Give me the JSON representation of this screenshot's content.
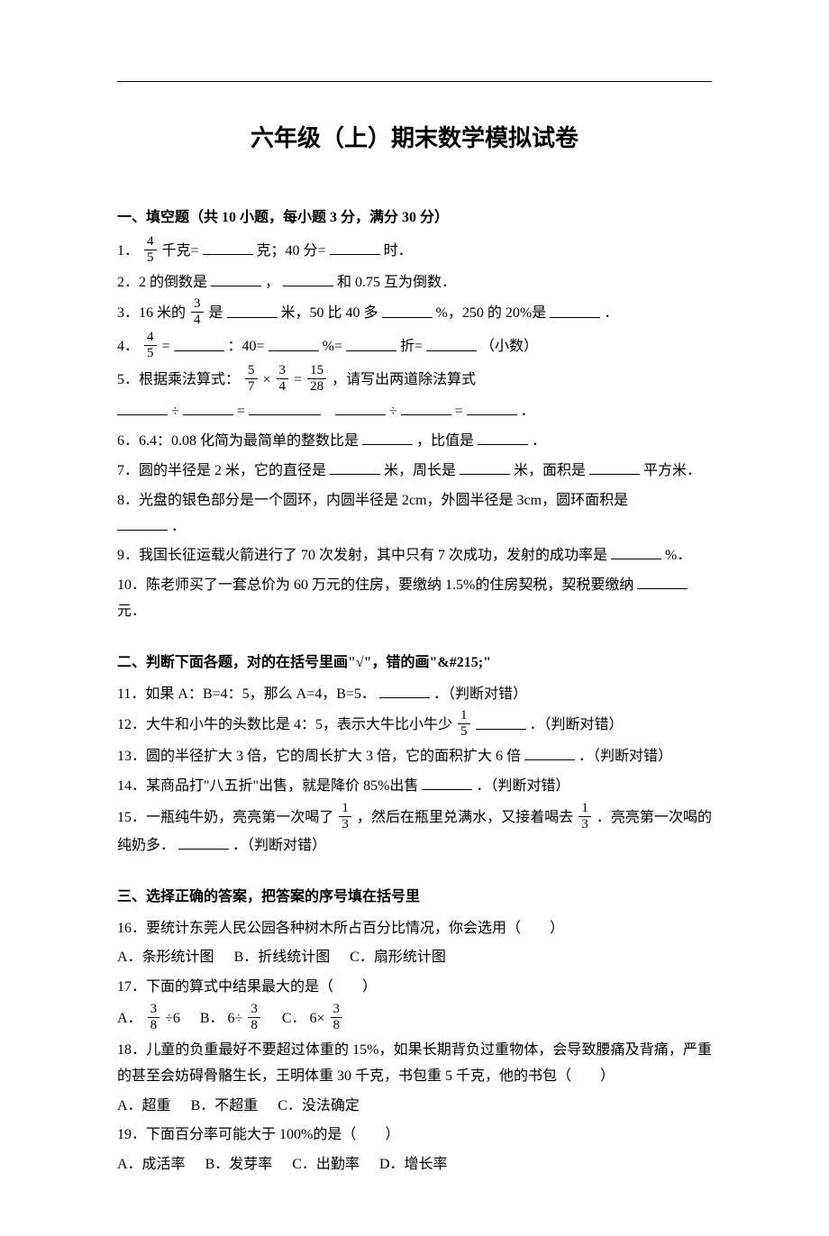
{
  "title": "六年级（上）期末数学模拟试卷",
  "section1_head": "一、填空题（共 10 小题，每小题 3 分，满分 30 分）",
  "q1_a": "1．",
  "q1_b": "千克=",
  "q1_c": "克；40 分=",
  "q1_d": "时．",
  "q1_frac_num": "4",
  "q1_frac_den": "5",
  "q2_a": "2．2 的倒数是",
  "q2_b": "，",
  "q2_c": "和 0.75 互为倒数．",
  "q3_a": "3．16 米的",
  "q3_b": "是",
  "q3_c": "米，50 比 40 多",
  "q3_d": "%，250 的 20%是",
  "q3_e": "．",
  "q3_frac_num": "3",
  "q3_frac_den": "4",
  "q4_a": "4．",
  "q4_b": "=",
  "q4_c": "：40=",
  "q4_d": "%=",
  "q4_e": "折=",
  "q4_f": "（小数）",
  "q4_frac_num": "4",
  "q4_frac_den": "5",
  "q5_a": "5．根据乘法算式：",
  "q5_b": "，请写出两道除法算式",
  "q5_f1n": "5",
  "q5_f1d": "7",
  "q5_mul": "×",
  "q5_f2n": "3",
  "q5_f2d": "4",
  "q5_eq1": "=",
  "q5_f3n": "15",
  "q5_f3d": "28",
  "q5_div": "÷",
  "q5_eq2": "=",
  "q5_div2": "÷",
  "q5_eq3": "=",
  "q5_dot": "．",
  "q6_a": "6．6.4：0.08 化简为最简单的整数比是",
  "q6_b": "，比值是",
  "q6_c": "．",
  "q7_a": "7．圆的半径是 2 米，它的直径是",
  "q7_b": "米，周长是",
  "q7_c": "米，面积是",
  "q7_d": "平方米．",
  "q8_a": "8．光盘的银色部分是一个圆环，内圆半径是 2cm，外圆半径是 3cm，圆环面积是",
  "q8_b": "．",
  "q9_a": "9．我国长征运载火箭进行了 70 次发射，其中只有 7 次成功，发射的成功率是",
  "q9_b": "%．",
  "q10_a": "10．陈老师买了一套总价为 60 万元的住房，要缴纳 1.5%的住房契税，契税要缴纳",
  "q10_b": "元．",
  "section2_head": "二、判断下面各题，对的在括号里画\"√\"，错的画\"&#215;\"",
  "q11_a": "11．如果 A：B=4：5，那么 A=4，B=5．",
  "q11_b": "．（判断对错）",
  "q12_a": "12．大牛和小牛的头数比是 4：5，表示大牛比小牛少",
  "q12_b": "．（判断对错）",
  "q12_frac_num": "1",
  "q12_frac_den": "5",
  "q13_a": "13．圆的半径扩大 3 倍，它的周长扩大 3 倍，它的面积扩大 6 倍",
  "q13_b": "．（判断对错）",
  "q14_a": "14．某商品打\"八五折\"出售，就是降价 85%出售",
  "q14_b": "．（判断对错）",
  "q15_a": "15．一瓶纯牛奶，亮亮第一次喝了",
  "q15_b": "，然后在瓶里兑满水，又接着喝去",
  "q15_c": "．亮亮第一次喝的纯奶多．",
  "q15_d": "．（判断对错）",
  "q15_frac_num": "1",
  "q15_frac_den": "3",
  "section3_head": "三、选择正确的答案，把答案的序号填在括号里",
  "q16_a": "16．要统计东莞人民公园各种树木所占百分比情况，你会选用（　　）",
  "q16_optA": "A．条形统计图",
  "q16_optB": "B．折线统计图",
  "q16_optC": "C．扇形统计图",
  "q17_a": "17．下面的算式中结果最大的是（　　）",
  "q17_A": "A．",
  "q17_B": "B．",
  "q17_C": "C．",
  "q17_f_num": "3",
  "q17_f_den": "8",
  "q17_div6": "÷6",
  "q17_6div": "6÷",
  "q17_6mul": "6×",
  "q18_a": "18．儿童的负重最好不要超过体重的 15%，如果长期背负过重物体，会导致腰痛及背痛，严重的甚至会妨碍骨骼生长，王明体重 30 千克，书包重 5 千克，他的书包（　　）",
  "q18_optA": "A．超重",
  "q18_optB": "B．不超重",
  "q18_optC": "C．没法确定",
  "q19_a": "19．下面百分率可能大于 100%的是（　　）",
  "q19_optA": "A．成活率",
  "q19_optB": "B．发芽率",
  "q19_optC": "C．出勤率",
  "q19_optD": "D．增长率"
}
